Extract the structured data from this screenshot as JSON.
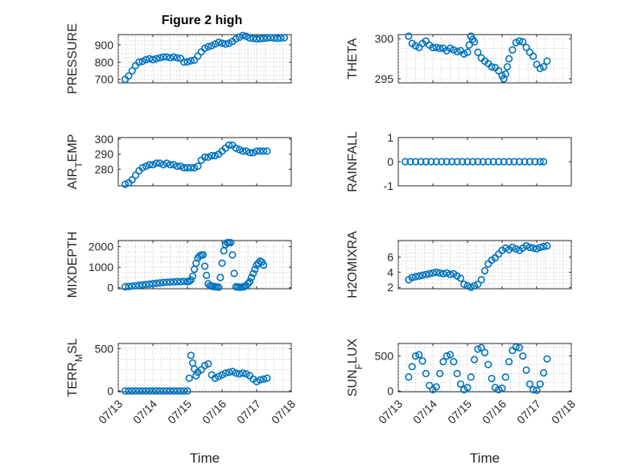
{
  "title": "Figure 2 high",
  "colors": {
    "marker": "#0072BD",
    "axis": "#262626",
    "grid": "#b0b0b0"
  },
  "chart_data": [
    {
      "type": "scatter",
      "id": "pressure",
      "ylabel": "PRESSURE",
      "xlim": [
        0,
        5
      ],
      "ylim": [
        680,
        960
      ],
      "yticks": [
        700,
        800,
        900
      ],
      "xticks": [
        0,
        1,
        2,
        3,
        4,
        5
      ],
      "xticklabels": [
        "07/13",
        "07/14",
        "07/15",
        "07/16",
        "07/17",
        "07/18"
      ],
      "show_xticklabels": false,
      "xlabel": "",
      "grid": true,
      "series": [
        {
          "x": [
            0.2,
            0.3,
            0.4,
            0.5,
            0.6,
            0.7,
            0.8,
            0.9,
            1.0,
            1.1,
            1.2,
            1.3,
            1.4,
            1.5,
            1.6,
            1.7,
            1.8,
            1.9,
            2.0,
            2.1,
            2.2,
            2.3,
            2.4,
            2.5,
            2.6,
            2.7,
            2.8,
            2.9,
            3.0,
            3.1,
            3.2,
            3.3,
            3.4,
            3.5,
            3.6,
            3.7,
            3.8,
            3.9,
            4.0,
            4.1,
            4.2,
            4.3,
            4.4,
            4.5,
            4.6,
            4.7,
            4.8
          ],
          "y": [
            700,
            720,
            750,
            780,
            800,
            805,
            815,
            820,
            815,
            820,
            825,
            830,
            830,
            825,
            830,
            825,
            822,
            800,
            802,
            808,
            812,
            835,
            860,
            880,
            890,
            895,
            905,
            915,
            910,
            905,
            910,
            920,
            935,
            945,
            955,
            950,
            940,
            938,
            935,
            936,
            938,
            940,
            942,
            940,
            938,
            940,
            942
          ]
        }
      ]
    },
    {
      "type": "scatter",
      "id": "theta",
      "ylabel": "THETA",
      "xlim": [
        0,
        5
      ],
      "ylim": [
        294.5,
        300.5
      ],
      "yticks": [
        295,
        300
      ],
      "xticks": [
        0,
        1,
        2,
        3,
        4,
        5
      ],
      "xticklabels": [
        "07/13",
        "07/14",
        "07/15",
        "07/16",
        "07/17",
        "07/18"
      ],
      "show_xticklabels": false,
      "xlabel": "",
      "grid": true,
      "series": [
        {
          "x": [
            0.3,
            0.4,
            0.5,
            0.6,
            0.7,
            0.8,
            0.9,
            1.0,
            1.1,
            1.2,
            1.3,
            1.4,
            1.5,
            1.6,
            1.7,
            1.8,
            1.9,
            2.0,
            2.05,
            2.1,
            2.15,
            2.2,
            2.3,
            2.4,
            2.5,
            2.6,
            2.7,
            2.8,
            2.9,
            3.0,
            3.05,
            3.1,
            3.15,
            3.2,
            3.3,
            3.4,
            3.5,
            3.6,
            3.7,
            3.8,
            3.9,
            4.0,
            4.1,
            4.2,
            4.3
          ],
          "y": [
            300.3,
            299.4,
            299.1,
            298.9,
            299.4,
            299.7,
            299.2,
            298.9,
            298.9,
            298.8,
            298.8,
            298.5,
            298.8,
            298.6,
            298.4,
            298.5,
            298.1,
            298.3,
            299.2,
            300.3,
            299.9,
            299.6,
            298.3,
            297.6,
            297.2,
            296.9,
            296.5,
            296.4,
            296.0,
            295.4,
            295.0,
            295.6,
            296.5,
            297.5,
            298.6,
            299.5,
            299.7,
            299.6,
            298.9,
            298.3,
            297.8,
            296.8,
            296.3,
            296.5,
            297.2
          ]
        }
      ]
    },
    {
      "type": "scatter",
      "id": "air_temp",
      "ylabel": "AIR_TEMP",
      "xlim": [
        0,
        5
      ],
      "ylim": [
        269,
        301
      ],
      "yticks": [
        280,
        290,
        300
      ],
      "xticks": [
        0,
        1,
        2,
        3,
        4,
        5
      ],
      "xticklabels": [
        "07/13",
        "07/14",
        "07/15",
        "07/16",
        "07/17",
        "07/18"
      ],
      "show_xticklabels": false,
      "xlabel": "",
      "grid": false,
      "series": [
        {
          "x": [
            0.2,
            0.3,
            0.4,
            0.5,
            0.6,
            0.7,
            0.8,
            0.9,
            1.0,
            1.1,
            1.2,
            1.3,
            1.4,
            1.5,
            1.6,
            1.7,
            1.8,
            1.9,
            2.0,
            2.1,
            2.2,
            2.3,
            2.4,
            2.5,
            2.6,
            2.7,
            2.8,
            2.9,
            3.0,
            3.1,
            3.2,
            3.3,
            3.4,
            3.5,
            3.6,
            3.7,
            3.8,
            3.9,
            4.0,
            4.1,
            4.2,
            4.3
          ],
          "y": [
            270,
            271,
            273,
            276,
            279,
            281,
            282,
            283,
            283,
            284,
            284,
            283,
            284,
            283,
            283,
            282,
            282,
            281,
            281,
            281,
            281,
            282,
            286,
            288,
            288,
            289,
            289,
            290,
            292,
            294,
            296,
            296,
            294,
            293,
            292,
            292,
            291,
            291,
            292,
            292,
            292,
            292
          ]
        }
      ]
    },
    {
      "type": "scatter",
      "id": "rainfall",
      "ylabel": "RAINFALL",
      "xlim": [
        0,
        5
      ],
      "ylim": [
        -1,
        1
      ],
      "yticks": [
        -1,
        0,
        1
      ],
      "xticks": [
        0,
        1,
        2,
        3,
        4,
        5
      ],
      "xticklabels": [
        "07/13",
        "07/14",
        "07/15",
        "07/16",
        "07/17",
        "07/18"
      ],
      "show_xticklabels": false,
      "xlabel": "",
      "grid": false,
      "series": [
        {
          "x": [
            0.2,
            0.35,
            0.5,
            0.65,
            0.8,
            0.95,
            1.1,
            1.25,
            1.4,
            1.55,
            1.7,
            1.85,
            2.0,
            2.15,
            2.3,
            2.45,
            2.6,
            2.75,
            2.9,
            3.05,
            3.2,
            3.35,
            3.5,
            3.65,
            3.8,
            3.95,
            4.1,
            4.2
          ],
          "y": [
            0,
            0,
            0,
            0,
            0,
            0,
            0,
            0,
            0,
            0,
            0,
            0,
            0,
            0,
            0,
            0,
            0,
            0,
            0,
            0,
            0,
            0,
            0,
            0,
            0,
            0,
            0,
            0
          ]
        }
      ]
    },
    {
      "type": "scatter",
      "id": "mixdepth",
      "ylabel": "MIXDEPTH",
      "xlim": [
        0,
        5
      ],
      "ylim": [
        -50,
        2300
      ],
      "yticks": [
        0,
        1000,
        2000
      ],
      "xticks": [
        0,
        1,
        2,
        3,
        4,
        5
      ],
      "xticklabels": [
        "07/13",
        "07/14",
        "07/15",
        "07/16",
        "07/17",
        "07/18"
      ],
      "show_xticklabels": false,
      "xlabel": "",
      "grid": true,
      "series": [
        {
          "x": [
            0.2,
            0.3,
            0.4,
            0.5,
            0.6,
            0.7,
            0.8,
            0.9,
            1.0,
            1.1,
            1.2,
            1.3,
            1.4,
            1.5,
            1.6,
            1.7,
            1.8,
            1.9,
            2.0,
            2.05,
            2.1,
            2.15,
            2.2,
            2.25,
            2.3,
            2.35,
            2.4,
            2.45,
            2.5,
            2.55,
            2.6,
            2.65,
            2.7,
            2.75,
            2.8,
            2.85,
            2.9,
            2.95,
            3.0,
            3.05,
            3.1,
            3.15,
            3.2,
            3.25,
            3.3,
            3.35,
            3.4,
            3.45,
            3.5,
            3.55,
            3.6,
            3.65,
            3.7,
            3.75,
            3.8,
            3.85,
            3.9,
            3.95,
            4.0,
            4.05,
            4.1,
            4.15,
            4.2
          ],
          "y": [
            50,
            60,
            80,
            100,
            120,
            140,
            160,
            180,
            200,
            220,
            240,
            260,
            270,
            280,
            290,
            300,
            300,
            310,
            300,
            320,
            380,
            560,
            900,
            1200,
            1450,
            1550,
            1600,
            1600,
            1050,
            600,
            200,
            100,
            80,
            60,
            50,
            40,
            30,
            500,
            1200,
            1800,
            2100,
            2200,
            2200,
            2200,
            1600,
            700,
            50,
            40,
            30,
            30,
            40,
            60,
            100,
            200,
            300,
            500,
            700,
            900,
            1100,
            1200,
            1300,
            1250,
            1100
          ]
        }
      ]
    },
    {
      "type": "scatter",
      "id": "h2omixra",
      "ylabel": "H2OMIXRA",
      "xlim": [
        0,
        5
      ],
      "ylim": [
        1.8,
        8.2
      ],
      "yticks": [
        2,
        4,
        6
      ],
      "xticks": [
        0,
        1,
        2,
        3,
        4,
        5
      ],
      "xticklabels": [
        "07/13",
        "07/14",
        "07/15",
        "07/16",
        "07/17",
        "07/18"
      ],
      "show_xticklabels": false,
      "xlabel": "",
      "grid": true,
      "series": [
        {
          "x": [
            0.3,
            0.4,
            0.5,
            0.6,
            0.7,
            0.8,
            0.9,
            1.0,
            1.1,
            1.2,
            1.3,
            1.4,
            1.5,
            1.6,
            1.7,
            1.8,
            1.9,
            2.0,
            2.1,
            2.2,
            2.3,
            2.4,
            2.5,
            2.6,
            2.7,
            2.8,
            2.9,
            3.0,
            3.1,
            3.2,
            3.3,
            3.4,
            3.5,
            3.6,
            3.7,
            3.8,
            3.9,
            4.0,
            4.1,
            4.2,
            4.3
          ],
          "y": [
            3.0,
            3.3,
            3.4,
            3.5,
            3.6,
            3.7,
            3.8,
            3.9,
            4.0,
            3.9,
            3.8,
            3.9,
            3.7,
            3.8,
            3.5,
            3.2,
            2.4,
            2.2,
            2.0,
            2.2,
            2.4,
            3.0,
            4.2,
            5.1,
            5.6,
            5.9,
            6.4,
            6.9,
            7.2,
            7.0,
            7.3,
            7.1,
            6.9,
            7.2,
            7.5,
            7.3,
            7.2,
            7.1,
            7.3,
            7.4,
            7.5
          ]
        }
      ]
    },
    {
      "type": "scatter",
      "id": "terr_msl",
      "ylabel": "TERR_MSL",
      "xlim": [
        0,
        5
      ],
      "ylim": [
        -10,
        560
      ],
      "yticks": [
        0,
        500
      ],
      "xticks": [
        0,
        1,
        2,
        3,
        4,
        5
      ],
      "xticklabels": [
        "07/13",
        "07/14",
        "07/15",
        "07/16",
        "07/17",
        "07/18"
      ],
      "show_xticklabels": true,
      "xlabel": "Time",
      "grid": true,
      "series": [
        {
          "x": [
            0.2,
            0.3,
            0.4,
            0.5,
            0.6,
            0.7,
            0.8,
            0.9,
            1.0,
            1.1,
            1.2,
            1.3,
            1.4,
            1.5,
            1.6,
            1.7,
            1.8,
            1.9,
            2.0,
            2.05,
            2.1,
            2.15,
            2.2,
            2.25,
            2.3,
            2.4,
            2.5,
            2.6,
            2.7,
            2.8,
            2.9,
            3.0,
            3.1,
            3.2,
            3.3,
            3.4,
            3.5,
            3.6,
            3.7,
            3.8,
            3.9,
            4.0,
            4.1,
            4.2,
            4.3
          ],
          "y": [
            0,
            0,
            0,
            0,
            0,
            0,
            0,
            0,
            0,
            0,
            0,
            0,
            0,
            0,
            0,
            0,
            0,
            0,
            0,
            150,
            420,
            330,
            260,
            180,
            220,
            250,
            300,
            320,
            190,
            150,
            170,
            190,
            210,
            220,
            230,
            210,
            200,
            210,
            200,
            180,
            140,
            110,
            130,
            140,
            150
          ]
        }
      ]
    },
    {
      "type": "scatter",
      "id": "sun_flux",
      "ylabel": "SUN_FLUX",
      "xlim": [
        0,
        5
      ],
      "ylim": [
        -10,
        680
      ],
      "yticks": [
        0,
        500
      ],
      "xticks": [
        0,
        1,
        2,
        3,
        4,
        5
      ],
      "xticklabels": [
        "07/13",
        "07/14",
        "07/15",
        "07/16",
        "07/17",
        "07/18"
      ],
      "show_xticklabels": true,
      "xlabel": "Time",
      "grid": true,
      "series": [
        {
          "x": [
            0.3,
            0.4,
            0.5,
            0.6,
            0.7,
            0.8,
            0.9,
            1.0,
            1.1,
            1.2,
            1.3,
            1.4,
            1.5,
            1.6,
            1.7,
            1.8,
            1.9,
            2.0,
            2.1,
            2.2,
            2.3,
            2.4,
            2.5,
            2.6,
            2.7,
            2.8,
            2.9,
            3.0,
            3.1,
            3.2,
            3.3,
            3.4,
            3.5,
            3.6,
            3.7,
            3.8,
            3.9,
            4.0,
            4.1,
            4.2,
            4.3
          ],
          "y": [
            200,
            350,
            500,
            520,
            430,
            250,
            80,
            20,
            60,
            250,
            420,
            500,
            520,
            420,
            250,
            100,
            20,
            50,
            200,
            450,
            600,
            620,
            550,
            380,
            180,
            50,
            20,
            40,
            200,
            420,
            580,
            630,
            620,
            500,
            300,
            100,
            20,
            10,
            100,
            260,
            460
          ]
        }
      ]
    }
  ]
}
